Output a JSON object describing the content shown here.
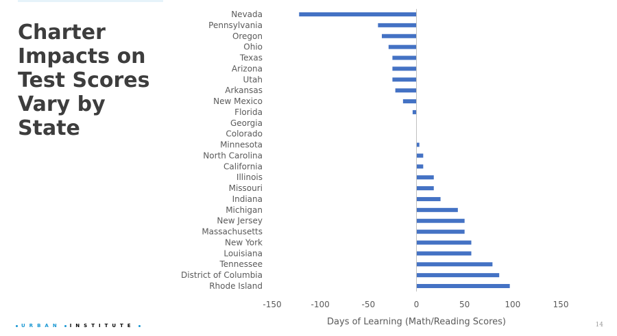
{
  "slide": {
    "title": "Charter\nImpacts on\nTest Scores\nVary by\nState",
    "page_number": "14"
  },
  "logo": {
    "word1": "URBAN",
    "word2": "INSTITUTE",
    "accent_color": "#1696d2",
    "text_color": "#000000"
  },
  "chart_data": {
    "type": "bar",
    "orientation": "horizontal",
    "categories": [
      "Nevada",
      "Pennsylvania",
      "Oregon",
      "Ohio",
      "Texas",
      "Arizona",
      "Utah",
      "Arkansas",
      "New Mexico",
      "Florida",
      "Georgia",
      "Colorado",
      "Minnesota",
      "North Carolina",
      "California",
      "Illinois",
      "Missouri",
      "Indiana",
      "Michigan",
      "New Jersey",
      "Massachusetts",
      "New York",
      "Louisiana",
      "Tennessee",
      "District of Columbia",
      "Rhode Island"
    ],
    "values": [
      -122,
      -40,
      -36,
      -29,
      -25,
      -25,
      -25,
      -22,
      -14,
      -4,
      0,
      0,
      3,
      7,
      7,
      18,
      18,
      25,
      43,
      50,
      50,
      57,
      57,
      79,
      86,
      97
    ],
    "xlabel": "Days of Learning (Math/Reading Scores)",
    "ylabel": "",
    "xlim": [
      -150,
      150
    ],
    "xticks": [
      -150,
      -100,
      -50,
      0,
      50,
      100,
      150
    ],
    "bar_color": "#4472c4",
    "grid": false
  }
}
